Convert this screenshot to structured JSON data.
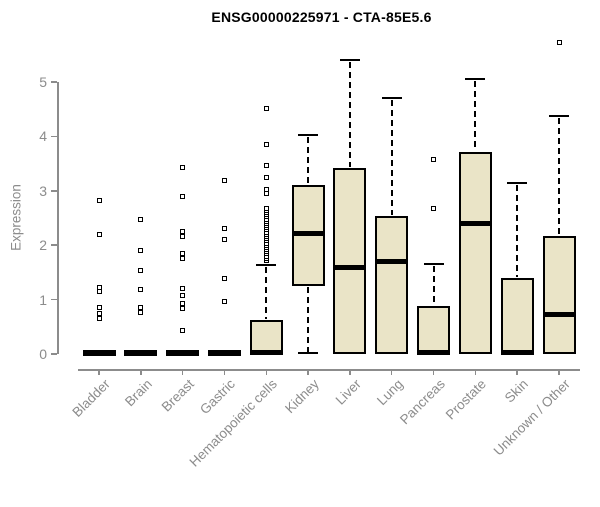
{
  "figure": {
    "title": "ENSG00000225971 - CTA-85E5.6"
  },
  "chart_data": {
    "type": "boxplot",
    "title": "ENSG00000225971 - CTA-85E5.6",
    "xlabel": "",
    "ylabel": "Expression",
    "ylim": [
      0,
      5.8
    ],
    "yticks": [
      0,
      1,
      2,
      3,
      4,
      5
    ],
    "grid": false,
    "legend": "none",
    "categories": [
      "Bladder",
      "Brain",
      "Breast",
      "Gastric",
      "Hematopoietic cells",
      "Kidney",
      "Liver",
      "Lung",
      "Pancreas",
      "Prostate",
      "Skin",
      "Unknown / Other"
    ],
    "series": [
      {
        "name": "Bladder",
        "whislo": 0,
        "q1": 0,
        "med": 0.02,
        "q3": 0.03,
        "whishi": 0.03,
        "outliers": [
          0.66,
          0.75,
          0.85,
          1.15,
          1.22,
          2.2,
          2.82
        ]
      },
      {
        "name": "Brain",
        "whislo": 0,
        "q1": 0,
        "med": 0.02,
        "q3": 0.03,
        "whishi": 0.03,
        "outliers": [
          0.77,
          0.86,
          1.19,
          1.54,
          1.91,
          2.47
        ]
      },
      {
        "name": "Breast",
        "whislo": 0,
        "q1": 0,
        "med": 0.02,
        "q3": 0.03,
        "whishi": 0.03,
        "outliers": [
          0.43,
          0.83,
          0.93,
          1.08,
          1.2,
          1.76,
          1.85,
          2.16,
          2.25,
          2.9,
          3.43
        ]
      },
      {
        "name": "Gastric",
        "whislo": 0,
        "q1": 0,
        "med": 0.02,
        "q3": 0.03,
        "whishi": 0.03,
        "outliers": [
          0.97,
          1.39,
          2.1,
          2.3,
          3.19
        ]
      },
      {
        "name": "Hematopoietic cells",
        "whislo": 0,
        "q1": 0,
        "med": 0.03,
        "q3": 0.63,
        "whishi": 1.64,
        "outliers": [
          1.72,
          1.76,
          1.8,
          1.84,
          1.88,
          1.92,
          1.96,
          2.0,
          2.04,
          2.08,
          2.12,
          2.16,
          2.2,
          2.24,
          2.28,
          2.32,
          2.36,
          2.4,
          2.44,
          2.48,
          2.52,
          2.56,
          2.6,
          2.64,
          2.68,
          2.95,
          3.02,
          3.24,
          3.46,
          3.86,
          4.51
        ]
      },
      {
        "name": "Kidney",
        "whislo": 0.02,
        "q1": 1.25,
        "med": 2.21,
        "q3": 3.1,
        "whishi": 4.03,
        "outliers": []
      },
      {
        "name": "Liver",
        "whislo": 0,
        "q1": 0,
        "med": 1.59,
        "q3": 3.42,
        "whishi": 5.4,
        "outliers": []
      },
      {
        "name": "Lung",
        "whislo": 0,
        "q1": 0,
        "med": 1.7,
        "q3": 2.53,
        "whishi": 4.7,
        "outliers": []
      },
      {
        "name": "Pancreas",
        "whislo": 0,
        "q1": 0,
        "med": 0.03,
        "q3": 0.88,
        "whishi": 1.66,
        "outliers": [
          2.68,
          3.58
        ]
      },
      {
        "name": "Prostate",
        "whislo": 0,
        "q1": 0,
        "med": 2.4,
        "q3": 3.72,
        "whishi": 5.05,
        "outliers": []
      },
      {
        "name": "Skin",
        "whislo": 0,
        "q1": 0,
        "med": 0.03,
        "q3": 1.39,
        "whishi": 3.14,
        "outliers": []
      },
      {
        "name": "Unknown / Other",
        "whislo": 0,
        "q1": 0,
        "med": 0.72,
        "q3": 2.17,
        "whishi": 4.37,
        "outliers": [
          5.72
        ]
      }
    ],
    "colors": {
      "box_fill": "#EAE4C7",
      "box_border": "#000000",
      "median": "#000000",
      "whisker": "#000000",
      "axis": "#8C8C8C",
      "tick_label": "#8C8C8C",
      "title": "#000000",
      "background": "#FFFFFF"
    }
  }
}
